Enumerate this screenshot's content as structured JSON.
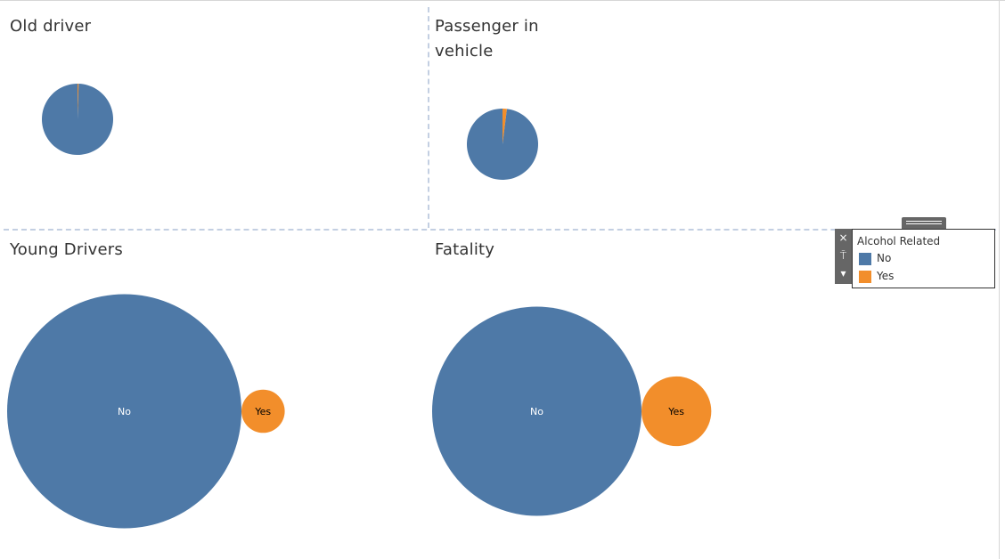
{
  "legend": {
    "title": "Alcohol Related",
    "items": [
      {
        "label": "No",
        "color": "#4e79a7"
      },
      {
        "label": "Yes",
        "color": "#f28e2b"
      }
    ],
    "tools": {
      "close_icon": "×",
      "pin_icon": "⍑",
      "menu_icon": "▾"
    }
  },
  "chart_data": [
    {
      "type": "pie",
      "title": "Old driver",
      "slices": [
        {
          "label": "No",
          "value": 99.5,
          "color": "#4e79a7"
        },
        {
          "label": "Yes",
          "value": 0.5,
          "color": "#f28e2b"
        }
      ]
    },
    {
      "type": "pie",
      "title": "Passenger in vehicle",
      "slices": [
        {
          "label": "No",
          "value": 98,
          "color": "#4e79a7"
        },
        {
          "label": "Yes",
          "value": 2,
          "color": "#f28e2b"
        }
      ]
    },
    {
      "type": "bubble",
      "title": "Young Drivers",
      "bubbles": [
        {
          "label": "No",
          "value": 96.7,
          "color": "#4e79a7"
        },
        {
          "label": "Yes",
          "value": 3.3,
          "color": "#f28e2b"
        }
      ]
    },
    {
      "type": "bubble",
      "title": "Fatality",
      "bubbles": [
        {
          "label": "No",
          "value": 90,
          "color": "#4e79a7"
        },
        {
          "label": "Yes",
          "value": 10,
          "color": "#f28e2b"
        }
      ]
    }
  ]
}
